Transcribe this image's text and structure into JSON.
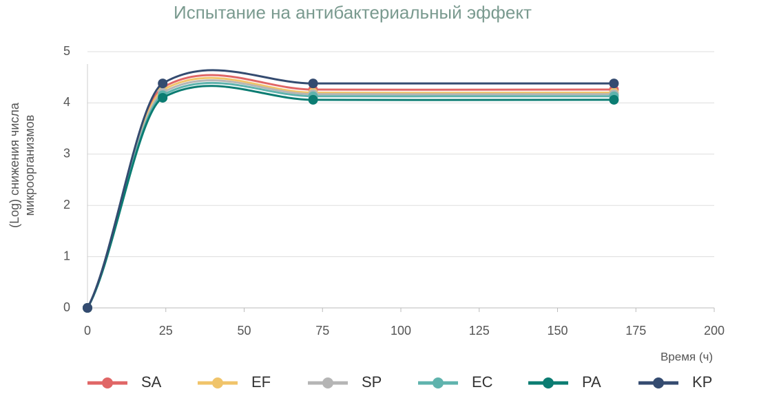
{
  "chart_data": {
    "type": "line",
    "title": "Испытание на антибактериальный эффект",
    "y_label": [
      "(Log) снижения числа",
      "микроорганизмов"
    ],
    "x_label": "Время (ч)",
    "x": [
      0,
      24,
      72,
      168
    ],
    "series": [
      {
        "name": "SA",
        "color": "#e06666",
        "values": [
          0,
          4.3,
          4.26,
          4.26
        ]
      },
      {
        "name": "EF",
        "color": "#f0c46a",
        "values": [
          0,
          4.25,
          4.2,
          4.2
        ]
      },
      {
        "name": "SP",
        "color": "#b5b5b5",
        "values": [
          0,
          4.2,
          4.17,
          4.17
        ]
      },
      {
        "name": "EC",
        "color": "#5fb3ad",
        "values": [
          0,
          4.15,
          4.13,
          4.13
        ]
      },
      {
        "name": "PA",
        "color": "#0b7c72",
        "values": [
          0,
          4.1,
          4.06,
          4.06
        ]
      },
      {
        "name": "KP",
        "color": "#344b70",
        "values": [
          0,
          4.38,
          4.38,
          4.38
        ]
      }
    ],
    "xlim": [
      0,
      200
    ],
    "xticks": [
      0,
      25,
      50,
      75,
      100,
      125,
      150,
      175,
      200
    ],
    "ylim": [
      0,
      5
    ],
    "yticks": [
      0,
      1,
      2,
      3,
      4,
      5
    ],
    "grid": true,
    "legend": "bottom",
    "smooth": true
  }
}
